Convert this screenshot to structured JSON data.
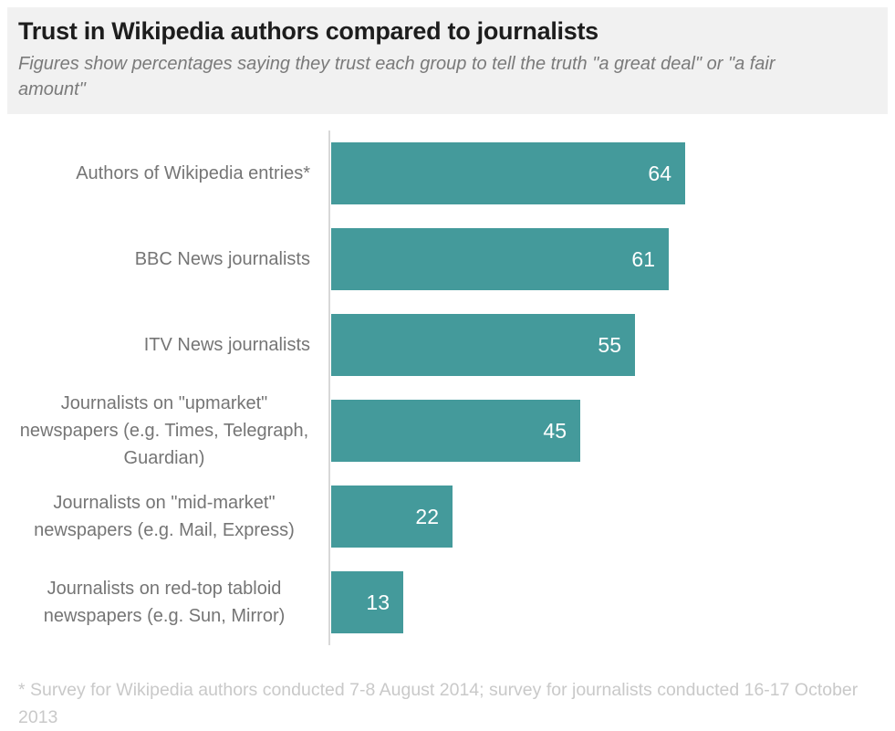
{
  "header": {
    "title": "Trust in Wikipedia authors compared to journalists",
    "subtitle": "Figures show percentages saying they trust each group to tell the truth \"a great deal\" or \"a fair amount\""
  },
  "chart_data": {
    "type": "bar",
    "orientation": "horizontal",
    "title": "Trust in Wikipedia authors compared to journalists",
    "subtitle": "Figures show percentages saying they trust each group to tell the truth \"a great deal\" or \"a fair amount\"",
    "categories": [
      "Authors of Wikipedia entries*",
      "BBC News journalists",
      "ITV News journalists",
      "Journalists on \"upmarket\" newspapers (e.g. Times, Telegraph, Guardian)",
      "Journalists on \"mid-market\" newspapers (e.g. Mail, Express)",
      "Journalists on red-top tabloid newspapers (e.g. Sun, Mirror)"
    ],
    "values": [
      64,
      61,
      55,
      45,
      22,
      13
    ],
    "value_labels": [
      "64",
      "61",
      "55",
      "45",
      "22",
      "13"
    ],
    "unit": "percent",
    "xlim": [
      0,
      64
    ],
    "grid": false,
    "legend_position": "none",
    "value_labels_inside_bars": true,
    "bar_color": "#449a9b",
    "value_label_color": "#ffffff"
  },
  "footnote": {
    "text": "* Survey for Wikipedia authors conducted 7-8 August 2014; survey for journalists conducted 16-17 October 2013"
  },
  "colors": {
    "bar": "#449a9b",
    "header_background": "#f1f1f1",
    "title_text": "#1d1d1d",
    "subtitle_text": "#7a7a7a",
    "category_label_text": "#757575",
    "axis_line": "#d8d8d8",
    "footnote_text": "#c9c9c9",
    "page_background": "#ffffff"
  }
}
